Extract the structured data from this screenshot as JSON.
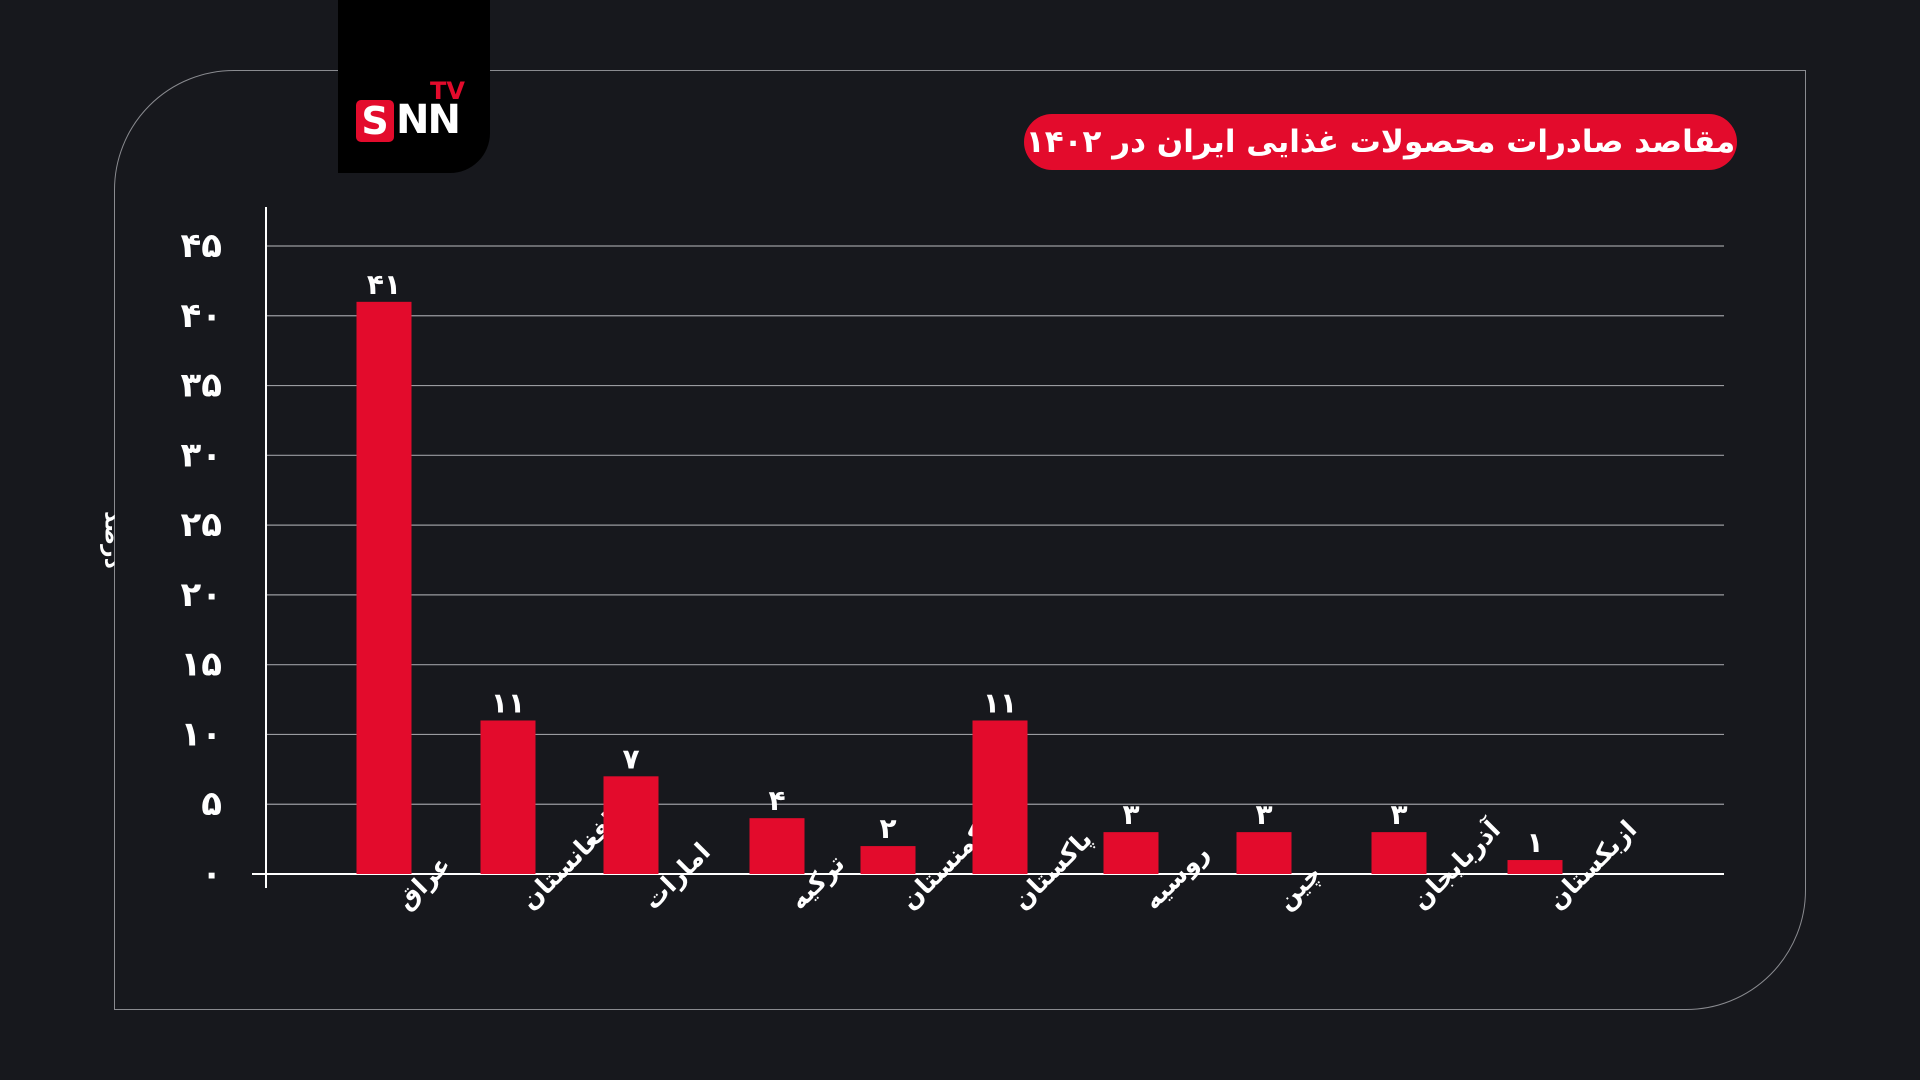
{
  "brand": {
    "s": "S",
    "nn": "NN",
    "tv": "TV"
  },
  "colors": {
    "accent": "#e30b2c",
    "background": "#17181d",
    "grid": "#9a9ba0",
    "text": "#ffffff"
  },
  "chart_data": {
    "type": "bar",
    "title": "مقاصد صادرات محصولات غذایی ایران در ۱۴۰۲",
    "ylabel": "درصد",
    "xlabel": "",
    "categories": [
      "عراق",
      "افغانستان",
      "امارات",
      "ترکیه",
      "ترکمنستان",
      "پاکستان",
      "روسیه",
      "چین",
      "آذربایجان",
      "ازبکستان"
    ],
    "values": [
      41,
      11,
      7,
      4,
      2,
      11,
      3,
      3,
      3,
      1
    ],
    "value_labels": [
      "۴۱",
      "۱۱",
      "۷",
      "۴",
      "۲",
      "۱۱",
      "۳",
      "۳",
      "۳",
      "۱"
    ],
    "yticks": [
      0,
      5,
      10,
      15,
      20,
      25,
      30,
      35,
      40,
      45
    ],
    "ytick_labels": [
      "۰",
      "۵",
      "۱۰",
      "۱۵",
      "۲۰",
      "۲۵",
      "۳۰",
      "۳۵",
      "۴۰",
      "۴۵"
    ],
    "ylim": [
      0,
      45
    ],
    "grid": true,
    "legend": "none"
  }
}
